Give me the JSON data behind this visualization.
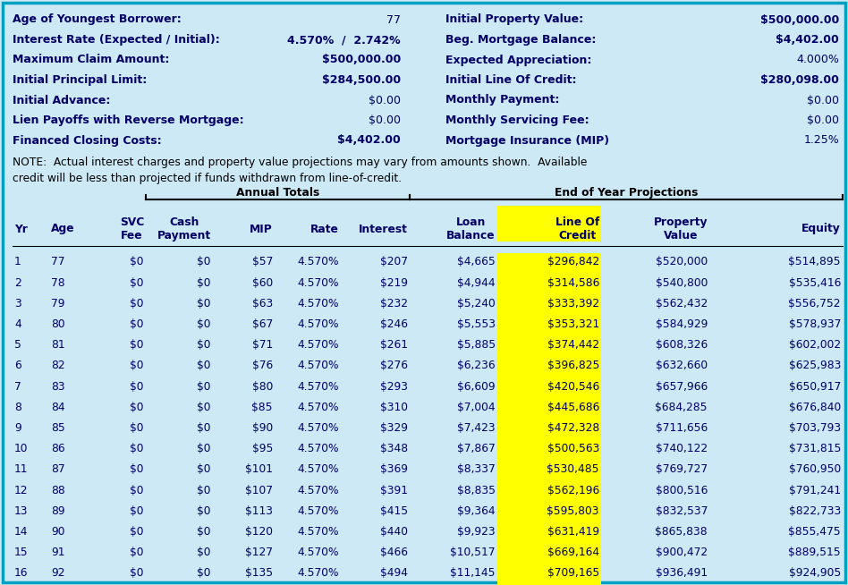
{
  "bg_color": "#cce9f5",
  "border_color": "#00a0c0",
  "text_color_dark": "#000066",
  "text_color_black": "#000000",
  "yellow_highlight": "#ffff00",
  "info_labels_left": [
    "Age of Youngest Borrower:",
    "Interest Rate (Expected / Initial):",
    "Maximum Claim Amount:",
    "Initial Principal Limit:",
    "Initial Advance:",
    "Lien Payoffs with Reverse Mortgage:",
    "Financed Closing Costs:"
  ],
  "info_values_left": [
    "77",
    "4.570%  /  2.742%",
    "$500,000.00",
    "$284,500.00",
    "$0.00",
    "$0.00",
    "$4,402.00"
  ],
  "info_bold_left": [
    false,
    true,
    true,
    true,
    false,
    false,
    true
  ],
  "info_labels_right": [
    "Initial Property Value:",
    "Beg. Mortgage Balance:",
    "Expected Appreciation:",
    "Initial Line Of Credit:",
    "Monthly Payment:",
    "Monthly Servicing Fee:",
    "Mortgage Insurance (MIP)"
  ],
  "info_values_right": [
    "$500,000.00",
    "$4,402.00",
    "4.000%",
    "$280,098.00",
    "$0.00",
    "$0.00",
    "1.25%"
  ],
  "info_bold_right": [
    true,
    true,
    false,
    true,
    false,
    false,
    false
  ],
  "note_line1": "NOTE:  Actual interest charges and property value projections may vary from amounts shown.  Available",
  "note_line2": "credit will be less than projected if funds withdrawn from line-of-credit.",
  "annual_totals_label": "Annual Totals",
  "end_year_label": "End of Year Projections",
  "col_headers": [
    "Yr",
    "Age",
    "SVC\nFee",
    "Cash\nPayment",
    "MIP",
    "Rate",
    "Interest",
    "Loan\nBalance",
    "Line Of\nCredit",
    "Property\nValue",
    "Equity"
  ],
  "table_data": [
    [
      "1",
      "77",
      "$0",
      "$0",
      "$57",
      "4.570%",
      "$207",
      "$4,665",
      "$296,842",
      "$520,000",
      "$514,895"
    ],
    [
      "2",
      "78",
      "$0",
      "$0",
      "$60",
      "4.570%",
      "$219",
      "$4,944",
      "$314,586",
      "$540,800",
      "$535,416"
    ],
    [
      "3",
      "79",
      "$0",
      "$0",
      "$63",
      "4.570%",
      "$232",
      "$5,240",
      "$333,392",
      "$562,432",
      "$556,752"
    ],
    [
      "4",
      "80",
      "$0",
      "$0",
      "$67",
      "4.570%",
      "$246",
      "$5,553",
      "$353,321",
      "$584,929",
      "$578,937"
    ],
    [
      "5",
      "81",
      "$0",
      "$0",
      "$71",
      "4.570%",
      "$261",
      "$5,885",
      "$374,442",
      "$608,326",
      "$602,002"
    ],
    [
      "6",
      "82",
      "$0",
      "$0",
      "$76",
      "4.570%",
      "$276",
      "$6,236",
      "$396,825",
      "$632,660",
      "$625,983"
    ],
    [
      "7",
      "83",
      "$0",
      "$0",
      "$80",
      "4.570%",
      "$293",
      "$6,609",
      "$420,546",
      "$657,966",
      "$650,917"
    ],
    [
      "8",
      "84",
      "$0",
      "$0",
      "$85",
      "4.570%",
      "$310",
      "$7,004",
      "$445,686",
      "$684,285",
      "$676,840"
    ],
    [
      "9",
      "85",
      "$0",
      "$0",
      "$90",
      "4.570%",
      "$329",
      "$7,423",
      "$472,328",
      "$711,656",
      "$703,793"
    ],
    [
      "10",
      "86",
      "$0",
      "$0",
      "$95",
      "4.570%",
      "$348",
      "$7,867",
      "$500,563",
      "$740,122",
      "$731,815"
    ],
    [
      "11",
      "87",
      "$0",
      "$0",
      "$101",
      "4.570%",
      "$369",
      "$8,337",
      "$530,485",
      "$769,727",
      "$760,950"
    ],
    [
      "12",
      "88",
      "$0",
      "$0",
      "$107",
      "4.570%",
      "$391",
      "$8,835",
      "$562,196",
      "$800,516",
      "$791,241"
    ],
    [
      "13",
      "89",
      "$0",
      "$0",
      "$113",
      "4.570%",
      "$415",
      "$9,364",
      "$595,803",
      "$832,537",
      "$822,733"
    ],
    [
      "14",
      "90",
      "$0",
      "$0",
      "$120",
      "4.570%",
      "$440",
      "$9,923",
      "$631,419",
      "$865,838",
      "$855,475"
    ],
    [
      "15",
      "91",
      "$0",
      "$0",
      "$127",
      "4.570%",
      "$466",
      "$10,517",
      "$669,164",
      "$900,472",
      "$889,515"
    ],
    [
      "16",
      "92",
      "$0",
      "$0",
      "$135",
      "4.570%",
      "$494",
      "$11,145",
      "$709,165",
      "$936,491",
      "$924,905"
    ]
  ],
  "figsize": [
    9.48,
    6.54
  ],
  "dpi": 100
}
